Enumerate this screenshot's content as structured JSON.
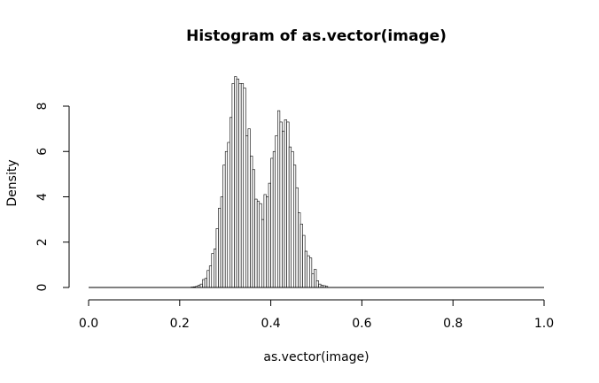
{
  "chart_data": {
    "type": "bar",
    "title": "Histogram of as.vector(image)",
    "xlabel": "as.vector(image)",
    "ylabel": "Density",
    "xlim": [
      0,
      1
    ],
    "ylim": [
      0,
      9.4
    ],
    "grid": false,
    "x_ticks": [
      "0.0",
      "0.2",
      "0.4",
      "0.6",
      "0.8",
      "1.0"
    ],
    "y_ticks": [
      "0",
      "2",
      "4",
      "6",
      "8"
    ],
    "bin_width": 0.005,
    "bins_start": 0.0,
    "values": [
      0,
      0,
      0,
      0,
      0,
      0,
      0,
      0,
      0,
      0,
      0,
      0,
      0,
      0,
      0,
      0,
      0,
      0,
      0,
      0,
      0,
      0,
      0,
      0,
      0,
      0,
      0,
      0,
      0,
      0,
      0,
      0,
      0,
      0,
      0,
      0,
      0,
      0,
      0,
      0,
      0,
      0,
      0,
      0,
      0,
      0.02,
      0.03,
      0.05,
      0.1,
      0.15,
      0.35,
      0.4,
      0.75,
      0.95,
      1.5,
      1.7,
      2.6,
      3.5,
      4.0,
      5.4,
      6.0,
      6.4,
      7.5,
      9.0,
      9.3,
      9.2,
      9.0,
      9.0,
      8.8,
      6.7,
      7.0,
      5.8,
      5.2,
      3.9,
      3.8,
      3.7,
      3.0,
      4.1,
      4.0,
      4.6,
      5.7,
      6.0,
      6.7,
      7.8,
      7.3,
      6.9,
      7.4,
      7.3,
      6.2,
      6.0,
      5.4,
      4.4,
      3.3,
      2.8,
      2.3,
      1.6,
      1.4,
      1.3,
      0.6,
      0.8,
      0.3,
      0.15,
      0.1,
      0.08,
      0.05,
      0,
      0,
      0,
      0,
      0,
      0,
      0,
      0,
      0,
      0,
      0,
      0,
      0,
      0,
      0,
      0,
      0,
      0,
      0,
      0,
      0,
      0,
      0,
      0,
      0,
      0,
      0,
      0,
      0,
      0,
      0,
      0,
      0,
      0,
      0,
      0,
      0,
      0,
      0,
      0,
      0,
      0,
      0,
      0,
      0,
      0,
      0,
      0,
      0,
      0,
      0,
      0,
      0,
      0,
      0,
      0,
      0,
      0,
      0,
      0,
      0,
      0,
      0,
      0,
      0,
      0,
      0,
      0,
      0,
      0,
      0,
      0,
      0,
      0,
      0,
      0,
      0,
      0,
      0,
      0,
      0,
      0,
      0,
      0,
      0,
      0,
      0,
      0,
      0,
      0,
      0,
      0,
      0,
      0,
      0
    ]
  }
}
